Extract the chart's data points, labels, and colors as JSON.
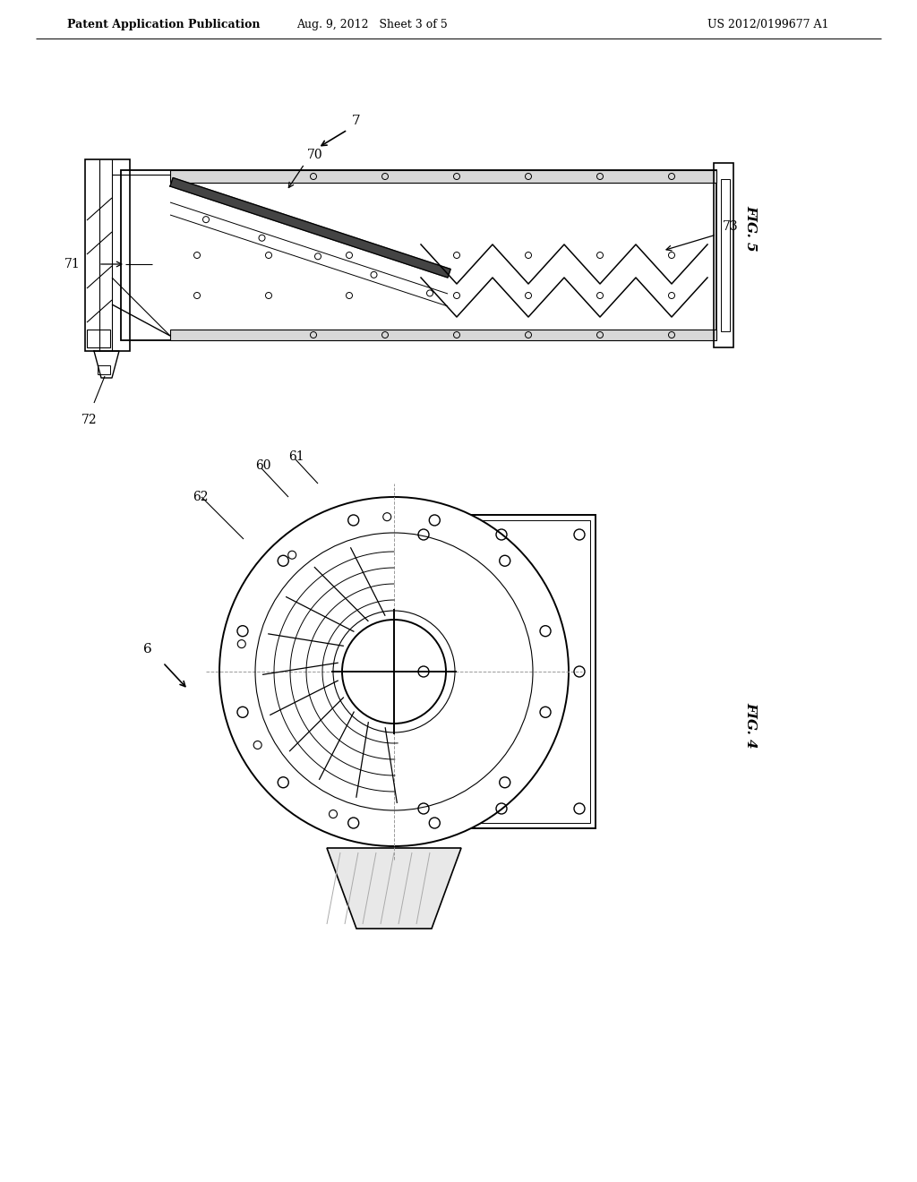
{
  "background_color": "#ffffff",
  "header_left": "Patent Application Publication",
  "header_center": "Aug. 9, 2012   Sheet 3 of 5",
  "header_right": "US 2012/0199677 A1",
  "fig5_label": "FIG. 5",
  "fig4_label": "FIG. 4",
  "line_color": "#000000",
  "lw_thin": 0.7,
  "lw_med": 1.2,
  "lw_thick": 1.8
}
